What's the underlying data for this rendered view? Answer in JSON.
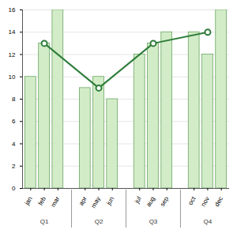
{
  "chart_data": {
    "type": "bar",
    "categories": [
      "jan",
      "feb",
      "mar",
      "apr",
      "may",
      "jun",
      "jul",
      "aug",
      "sep",
      "oct",
      "nov",
      "dec"
    ],
    "groups": [
      {
        "label": "Q1",
        "categories": [
          "jan",
          "feb",
          "mar"
        ]
      },
      {
        "label": "Q2",
        "categories": [
          "apr",
          "may",
          "jun"
        ]
      },
      {
        "label": "Q3",
        "categories": [
          "jul",
          "aug",
          "sep"
        ]
      },
      {
        "label": "Q4",
        "categories": [
          "oct",
          "nov",
          "dec"
        ]
      }
    ],
    "series": [
      {
        "type": "bar",
        "color": "#d3ecc8",
        "values": [
          10,
          13,
          16,
          9,
          10,
          8,
          12,
          13,
          14,
          14,
          12,
          16
        ]
      },
      {
        "type": "line",
        "color": "#2e7d3a",
        "marker": "circle",
        "x": [
          "feb",
          "may",
          "aug",
          "nov"
        ],
        "values": [
          13,
          9,
          13,
          14
        ]
      }
    ],
    "ylim": [
      0,
      16
    ],
    "yticks": [
      0,
      2,
      4,
      6,
      8,
      10,
      12,
      14,
      16
    ],
    "grid": true
  }
}
